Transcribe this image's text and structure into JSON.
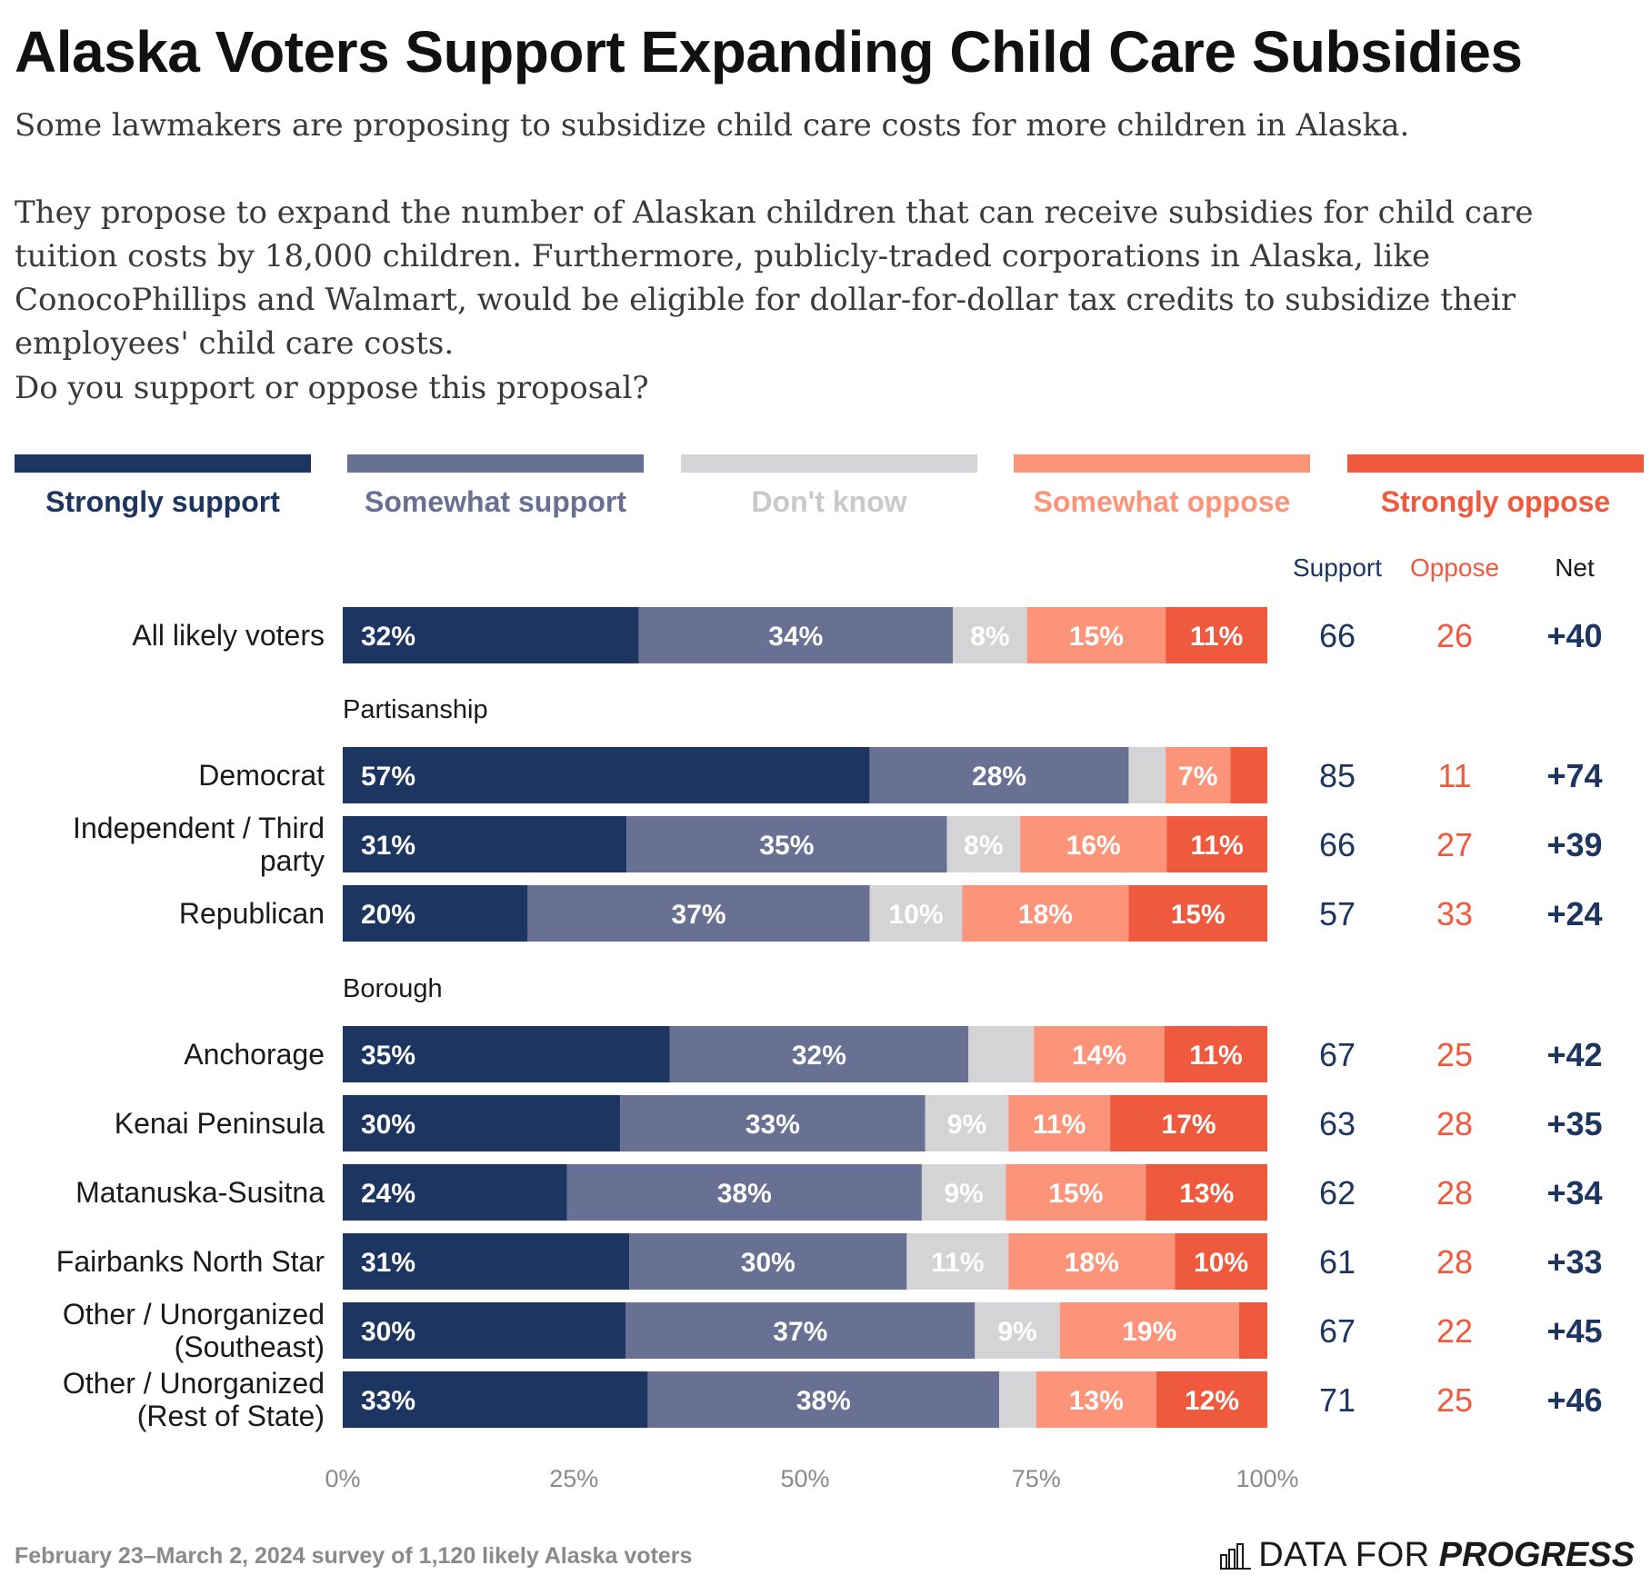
{
  "title": "Alaska Voters Support Expanding Child Care Subsidies",
  "intro": [
    "Some lawmakers are proposing to subsidize child care costs for more children in Alaska.",
    "They propose to expand the number of Alaskan children that can receive subsidies for child care tuition costs by 18,000 children. Furthermore, publicly-traded corporations in Alaska, like ConocoPhillips and Walmart, would be eligible for dollar-for-dollar tax credits to subsidize their employees' child care costs."
  ],
  "question": "Do you support or oppose this proposal?",
  "legend": [
    {
      "label": "Strongly support",
      "color": "#1c3661"
    },
    {
      "label": "Somewhat support",
      "color": "#687193"
    },
    {
      "label": "Don't know",
      "color": "#d4d4d6"
    },
    {
      "label": "Somewhat oppose",
      "color": "#fc947a"
    },
    {
      "label": "Strongly oppose",
      "color": "#ef5a3f"
    }
  ],
  "summary_headers": {
    "support": "Support",
    "oppose": "Oppose",
    "net": "Net"
  },
  "colors": {
    "support": "#1c3661",
    "oppose": "#ef5a3f",
    "net": "#1c3661",
    "axis": "#8a8a8a"
  },
  "chart_data": {
    "type": "bar",
    "orientation": "horizontal",
    "stacked": true,
    "xlim": [
      0,
      100
    ],
    "xticks": [
      "0%",
      "25%",
      "50%",
      "75%",
      "100%"
    ],
    "series": [
      "Strongly support",
      "Somewhat support",
      "Don't know",
      "Somewhat oppose",
      "Strongly oppose"
    ],
    "groups": [
      {
        "heading": "",
        "rows": [
          {
            "label": [
              "All likely voters"
            ],
            "values": [
              32,
              34,
              8,
              15,
              11
            ],
            "support": "66",
            "oppose": "26",
            "net": "+40"
          }
        ]
      },
      {
        "heading": "Partisanship",
        "rows": [
          {
            "label": [
              "Democrat"
            ],
            "values": [
              57,
              28,
              4,
              7,
              4
            ],
            "hidden_labels": [
              2,
              4
            ],
            "support": "85",
            "oppose": "11",
            "net": "+74"
          },
          {
            "label": [
              "Independent / Third",
              "party"
            ],
            "values": [
              31,
              35,
              8,
              16,
              11
            ],
            "support": "66",
            "oppose": "27",
            "net": "+39"
          },
          {
            "label": [
              "Republican"
            ],
            "values": [
              20,
              37,
              10,
              18,
              15
            ],
            "support": "57",
            "oppose": "33",
            "net": "+24"
          }
        ]
      },
      {
        "heading": "Borough",
        "rows": [
          {
            "label": [
              "Anchorage"
            ],
            "values": [
              35,
              32,
              7,
              14,
              11
            ],
            "hidden_labels": [
              2
            ],
            "support": "67",
            "oppose": "25",
            "net": "+42"
          },
          {
            "label": [
              "Kenai Peninsula"
            ],
            "values": [
              30,
              33,
              9,
              11,
              17
            ],
            "support": "63",
            "oppose": "28",
            "net": "+35"
          },
          {
            "label": [
              "Matanuska-Susitna"
            ],
            "values": [
              24,
              38,
              9,
              15,
              13
            ],
            "support": "62",
            "oppose": "28",
            "net": "+34"
          },
          {
            "label": [
              "Fairbanks North Star"
            ],
            "values": [
              31,
              30,
              11,
              18,
              10
            ],
            "support": "61",
            "oppose": "28",
            "net": "+33"
          },
          {
            "label": [
              "Other / Unorganized",
              "(Southeast)"
            ],
            "values": [
              30,
              37,
              9,
              19,
              3
            ],
            "hidden_labels": [
              4
            ],
            "support": "67",
            "oppose": "22",
            "net": "+45"
          },
          {
            "label": [
              "Other / Unorganized",
              "(Rest of State)"
            ],
            "values": [
              33,
              38,
              4,
              13,
              12
            ],
            "hidden_labels": [
              2
            ],
            "support": "71",
            "oppose": "25",
            "net": "+46"
          }
        ]
      }
    ]
  },
  "footer_note": "February 23–March 2, 2024 survey of 1,120 likely Alaska voters",
  "brand": {
    "part1": "DATA FOR",
    "part2": "PROGRESS"
  }
}
